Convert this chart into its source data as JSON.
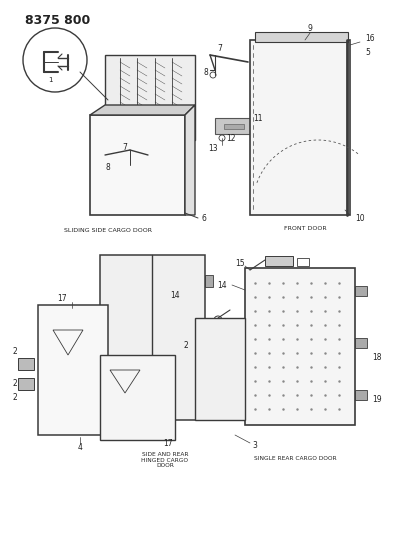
{
  "title": "8375 800",
  "bg": "#ffffff",
  "lc": "#3a3a3a",
  "tc": "#222222",
  "gray1": "#d8d8d8",
  "gray2": "#c0c0c0",
  "gray3": "#e8e8e8",
  "labels": {
    "sliding": "SLIDING SIDE CARGO DOOR",
    "front": "FRONT DOOR",
    "side_rear": "SIDE AND REAR\nHINGED CARGO\nDOOR",
    "single_rear": "SINGLE REAR CARGO DOOR"
  }
}
